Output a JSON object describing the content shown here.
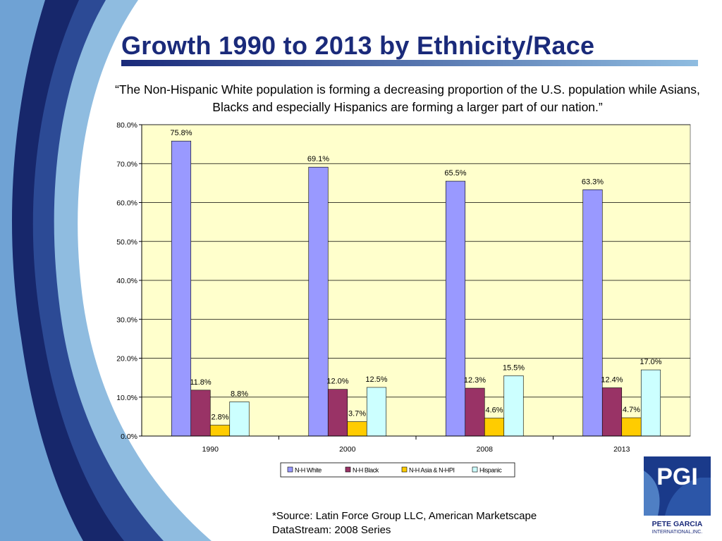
{
  "slide": {
    "title": "Growth 1990 to 2013 by Ethnicity/Race",
    "quote": "“The Non-Hispanic White population is forming a decreasing proportion of the U.S. population while Asians, Blacks and especially Hispanics are forming a larger part of our nation.”",
    "source_line1": "*Source: Latin Force Group LLC, American Marketscape",
    "source_line2": "DataStream: 2008 Series",
    "logo_text": "PGI",
    "logo_name": "PETE GARCIA",
    "logo_sub": "INTERNATIONAL,INC."
  },
  "colors": {
    "title": "#1a2a7a",
    "plot_bg": "#ffffcc",
    "swoosh_dark": "#17276b",
    "swoosh_light": "#8fbce0"
  },
  "chart_data": {
    "type": "bar",
    "categories": [
      "1990",
      "2000",
      "2008",
      "2013"
    ],
    "series": [
      {
        "name": "N-H White",
        "color": "#9999ff",
        "values": [
          75.8,
          69.1,
          65.5,
          63.3
        ]
      },
      {
        "name": "N-H Black",
        "color": "#993366",
        "values": [
          11.8,
          12.0,
          12.3,
          12.4
        ]
      },
      {
        "name": "N-H Asia & N-HPI",
        "color": "#ffcc00",
        "values": [
          2.8,
          3.7,
          4.6,
          4.7
        ]
      },
      {
        "name": "Hispanic",
        "color": "#ccffff",
        "values": [
          8.8,
          12.5,
          15.5,
          17.0
        ]
      }
    ],
    "ylim": [
      0,
      80
    ],
    "yticks": [
      "0.0%",
      "10.0%",
      "20.0%",
      "30.0%",
      "40.0%",
      "50.0%",
      "60.0%",
      "70.0%",
      "80.0%"
    ],
    "value_suffix": "%",
    "grid": true,
    "legend": "bottom"
  }
}
